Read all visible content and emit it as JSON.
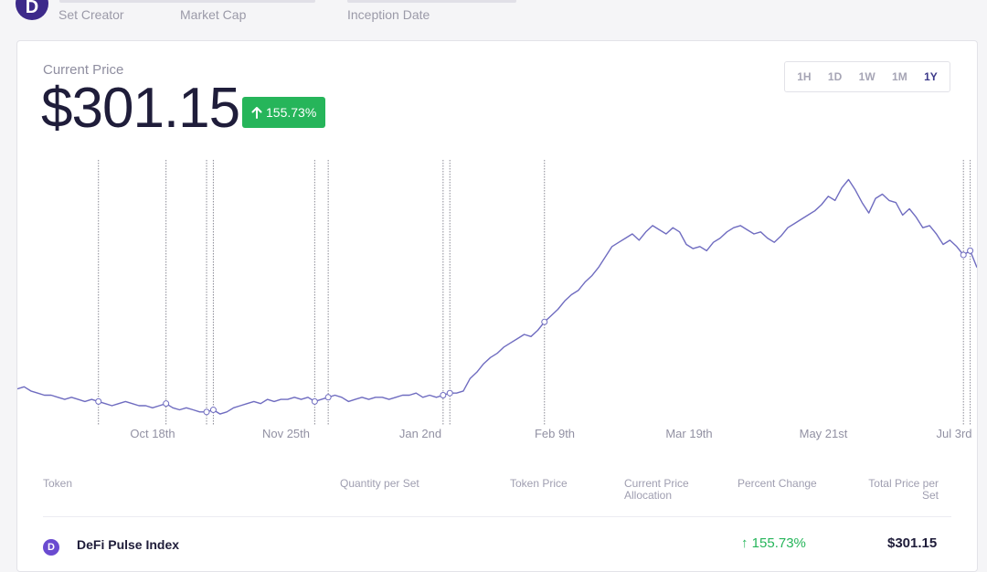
{
  "header": {
    "logo_letter": "D",
    "meta": [
      {
        "label": "Set Creator"
      },
      {
        "label": "Market Cap"
      },
      {
        "label": "Inception Date"
      }
    ]
  },
  "price": {
    "label": "Current Price",
    "value": "$301.15",
    "change": "155.73%",
    "change_icon": "arrow-up-icon",
    "accent_color": "#26b55a"
  },
  "ranges": {
    "items": [
      "1H",
      "1D",
      "1W",
      "1M",
      "1Y"
    ],
    "active": "1Y"
  },
  "chart_data": {
    "type": "line",
    "x_ticks": [
      "Oct 18th",
      "Nov 25th",
      "Jan 2nd",
      "Feb 9th",
      "Mar 19th",
      "May 21st",
      "Jul 3rd"
    ],
    "line_color": "#6f6cc0",
    "grid": false,
    "series": [
      {
        "values": [
          50,
          51,
          49,
          48,
          47,
          47,
          46,
          45,
          46,
          45,
          44,
          45,
          44,
          43,
          42,
          43,
          44,
          43,
          42,
          42,
          41,
          42,
          43,
          41,
          40,
          41,
          40,
          39,
          39,
          40,
          38,
          39,
          41,
          42,
          43,
          44,
          43,
          45,
          44,
          45,
          45,
          46,
          45,
          46,
          44,
          45,
          46,
          47,
          46,
          44,
          45,
          46,
          45,
          46,
          46,
          45,
          46,
          47,
          47,
          48,
          46,
          47,
          46,
          47,
          48,
          48,
          49,
          55,
          58,
          62,
          65,
          67,
          70,
          72,
          74,
          76,
          75,
          78,
          82,
          85,
          88,
          92,
          95,
          97,
          101,
          104,
          108,
          113,
          118,
          120,
          122,
          124,
          121,
          125,
          128,
          126,
          124,
          127,
          125,
          119,
          117,
          118,
          116,
          120,
          122,
          125,
          127,
          128,
          126,
          124,
          125,
          122,
          120,
          123,
          127,
          129,
          131,
          133,
          135,
          138,
          142,
          140,
          146,
          150,
          145,
          139,
          134,
          141,
          143,
          140,
          139,
          133,
          136,
          132,
          127,
          128,
          124,
          119,
          121,
          118,
          114,
          116,
          108
        ]
      }
    ]
  },
  "table": {
    "headers": [
      "Token",
      "Quantity per Set",
      "Token Price",
      "Current Price Allocation",
      "Percent Change",
      "Total Price per Set"
    ],
    "rows": [
      {
        "icon_letter": "D",
        "token": "DeFi Pulse Index",
        "percent_change": "155.73%",
        "total": "$301.15"
      }
    ]
  }
}
